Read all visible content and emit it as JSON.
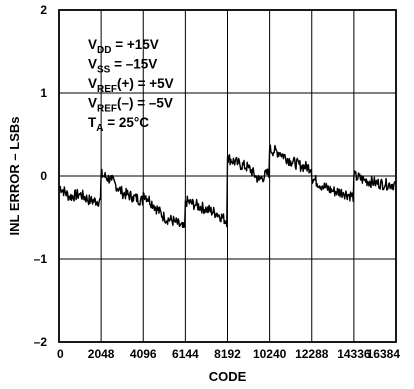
{
  "chart_data": {
    "type": "line",
    "title": "",
    "xlabel": "CODE",
    "ylabel": "INL ERROR – LSBs",
    "xlim": [
      0,
      16384
    ],
    "ylim": [
      -2,
      2
    ],
    "x_ticks": [
      0,
      2048,
      4096,
      6144,
      8192,
      10240,
      12288,
      14336,
      16384
    ],
    "x_tick_labels": [
      "0",
      "2048",
      "4096",
      "6144",
      "8192",
      "10240",
      "12288",
      "14336",
      "16384"
    ],
    "y_ticks": [
      -2,
      -1,
      0,
      1,
      2
    ],
    "y_tick_labels": [
      "–2",
      "–1",
      "0",
      "1",
      "2"
    ],
    "grid": true,
    "legend": "none",
    "line_color": "#000000",
    "series": [
      {
        "x": [
          0,
          512,
          1024,
          1536,
          2047,
          2048,
          2560,
          3072,
          3584,
          4095,
          4096,
          4608,
          5120,
          5632,
          6143,
          6144,
          6656,
          7168,
          7680,
          8191,
          8192,
          8704,
          9216,
          9728,
          10239,
          10240,
          10752,
          11264,
          11776,
          12287,
          12288,
          12800,
          13312,
          13824,
          14335,
          14336,
          14848,
          15360,
          15872,
          16384
        ],
        "y": [
          -0.12,
          -0.25,
          -0.22,
          -0.3,
          -0.3,
          0.02,
          -0.05,
          -0.2,
          -0.25,
          -0.3,
          -0.2,
          -0.35,
          -0.5,
          -0.55,
          -0.65,
          -0.3,
          -0.35,
          -0.4,
          -0.45,
          -0.55,
          0.22,
          0.15,
          0.1,
          -0.05,
          0.05,
          0.32,
          0.28,
          0.18,
          0.12,
          0.1,
          -0.02,
          -0.12,
          -0.18,
          -0.2,
          -0.25,
          0.0,
          -0.05,
          -0.08,
          -0.1,
          -0.1
        ]
      }
    ],
    "annotations": [
      {
        "parts": [
          {
            "t": "V"
          },
          {
            "t": "DD",
            "sub": true
          },
          {
            "t": " = +15V"
          }
        ]
      },
      {
        "parts": [
          {
            "t": "V"
          },
          {
            "t": "SS",
            "sub": true
          },
          {
            "t": " = –15V"
          }
        ]
      },
      {
        "parts": [
          {
            "t": "V"
          },
          {
            "t": "REF",
            "sub": true
          },
          {
            "t": "(+) = +5V"
          }
        ]
      },
      {
        "parts": [
          {
            "t": "V"
          },
          {
            "t": "REF",
            "sub": true
          },
          {
            "t": "(–) = –5V"
          }
        ]
      },
      {
        "parts": [
          {
            "t": "T"
          },
          {
            "t": "A",
            "sub": true
          },
          {
            "t": " = 25°C"
          }
        ]
      }
    ]
  }
}
